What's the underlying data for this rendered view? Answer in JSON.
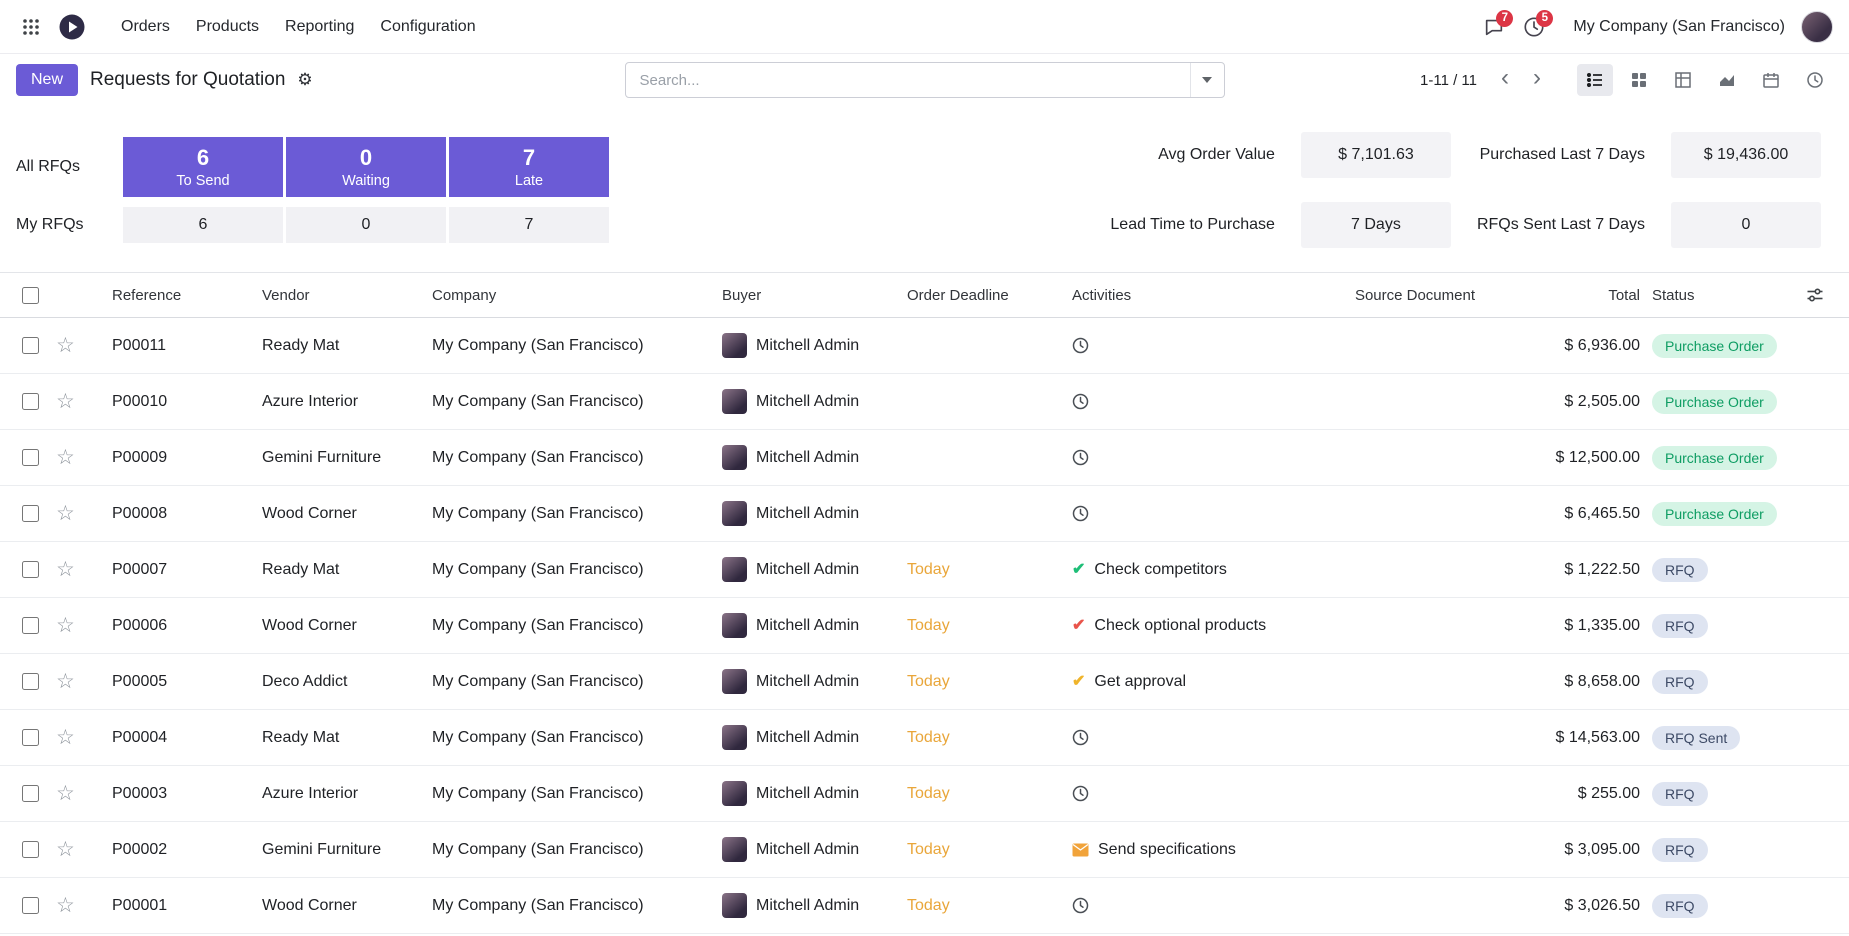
{
  "colors": {
    "accent": "#6B5BD6",
    "badge_red": "#DC3545",
    "today": "#E9A63A",
    "status_po_bg": "#D5F4E5",
    "status_po_text": "#0E9D63",
    "status_rfq_bg": "#DEE4F1",
    "status_rfq_text": "#3D4A66",
    "act_green": "#1EBE77",
    "act_red": "#E9544B",
    "act_yellow": "#EFB42B"
  },
  "navbar": {
    "menus": [
      {
        "label": "Orders"
      },
      {
        "label": "Products"
      },
      {
        "label": "Reporting"
      },
      {
        "label": "Configuration"
      }
    ],
    "company": "My Company (San Francisco)",
    "messages_badge": "7",
    "activities_badge": "5"
  },
  "control_panel": {
    "new_button": "New",
    "title": "Requests for Quotation",
    "search_placeholder": "Search...",
    "pager": "1-11 / 11",
    "view_switcher": [
      "list",
      "kanban",
      "pivot",
      "graph",
      "calendar",
      "activity"
    ],
    "active_view": "list"
  },
  "dashboard": {
    "left_rows": [
      {
        "label": "All RFQs",
        "style": "primary",
        "cells": [
          {
            "value": "6",
            "caption": "To Send"
          },
          {
            "value": "0",
            "caption": "Waiting"
          },
          {
            "value": "7",
            "caption": "Late"
          }
        ]
      },
      {
        "label": "My RFQs",
        "style": "muted",
        "cells": [
          {
            "value": "6",
            "caption": ""
          },
          {
            "value": "0",
            "caption": ""
          },
          {
            "value": "7",
            "caption": ""
          }
        ]
      }
    ],
    "stats": [
      {
        "label": "Avg Order Value",
        "value": "$ 7,101.63"
      },
      {
        "label": "Purchased Last 7 Days",
        "value": "$ 19,436.00"
      },
      {
        "label": "Lead Time to Purchase",
        "value": "7 Days"
      },
      {
        "label": "RFQs Sent Last 7 Days",
        "value": "0"
      }
    ]
  },
  "table": {
    "headers": [
      "Reference",
      "Vendor",
      "Company",
      "Buyer",
      "Order Deadline",
      "Activities",
      "Source Document",
      "Total",
      "Status"
    ],
    "rows": [
      {
        "reference": "P00011",
        "vendor": "Ready Mat",
        "company": "My Company (San Francisco)",
        "buyer": "Mitchell Admin",
        "deadline": "",
        "activity": {
          "icon": "clock",
          "color": "",
          "label": ""
        },
        "source": "",
        "total": "$ 6,936.00",
        "status": "Purchase Order",
        "status_type": "po"
      },
      {
        "reference": "P00010",
        "vendor": "Azure Interior",
        "company": "My Company (San Francisco)",
        "buyer": "Mitchell Admin",
        "deadline": "",
        "activity": {
          "icon": "clock",
          "color": "",
          "label": ""
        },
        "source": "",
        "total": "$ 2,505.00",
        "status": "Purchase Order",
        "status_type": "po"
      },
      {
        "reference": "P00009",
        "vendor": "Gemini Furniture",
        "company": "My Company (San Francisco)",
        "buyer": "Mitchell Admin",
        "deadline": "",
        "activity": {
          "icon": "clock",
          "color": "",
          "label": ""
        },
        "source": "",
        "total": "$ 12,500.00",
        "status": "Purchase Order",
        "status_type": "po"
      },
      {
        "reference": "P00008",
        "vendor": "Wood Corner",
        "company": "My Company (San Francisco)",
        "buyer": "Mitchell Admin",
        "deadline": "",
        "activity": {
          "icon": "clock",
          "color": "",
          "label": ""
        },
        "source": "",
        "total": "$ 6,465.50",
        "status": "Purchase Order",
        "status_type": "po"
      },
      {
        "reference": "P00007",
        "vendor": "Ready Mat",
        "company": "My Company (San Francisco)",
        "buyer": "Mitchell Admin",
        "deadline": "Today",
        "activity": {
          "icon": "check",
          "color": "green",
          "label": "Check competitors"
        },
        "source": "",
        "total": "$ 1,222.50",
        "status": "RFQ",
        "status_type": "rfq"
      },
      {
        "reference": "P00006",
        "vendor": "Wood Corner",
        "company": "My Company (San Francisco)",
        "buyer": "Mitchell Admin",
        "deadline": "Today",
        "activity": {
          "icon": "check",
          "color": "red",
          "label": "Check optional products"
        },
        "source": "",
        "total": "$ 1,335.00",
        "status": "RFQ",
        "status_type": "rfq"
      },
      {
        "reference": "P00005",
        "vendor": "Deco Addict",
        "company": "My Company (San Francisco)",
        "buyer": "Mitchell Admin",
        "deadline": "Today",
        "activity": {
          "icon": "check",
          "color": "yellow",
          "label": "Get approval"
        },
        "source": "",
        "total": "$ 8,658.00",
        "status": "RFQ",
        "status_type": "rfq"
      },
      {
        "reference": "P00004",
        "vendor": "Ready Mat",
        "company": "My Company (San Francisco)",
        "buyer": "Mitchell Admin",
        "deadline": "Today",
        "activity": {
          "icon": "clock",
          "color": "",
          "label": ""
        },
        "source": "",
        "total": "$ 14,563.00",
        "status": "RFQ Sent",
        "status_type": "rfq"
      },
      {
        "reference": "P00003",
        "vendor": "Azure Interior",
        "company": "My Company (San Francisco)",
        "buyer": "Mitchell Admin",
        "deadline": "Today",
        "activity": {
          "icon": "clock",
          "color": "",
          "label": ""
        },
        "source": "",
        "total": "$ 255.00",
        "status": "RFQ",
        "status_type": "rfq"
      },
      {
        "reference": "P00002",
        "vendor": "Gemini Furniture",
        "company": "My Company (San Francisco)",
        "buyer": "Mitchell Admin",
        "deadline": "Today",
        "activity": {
          "icon": "envelope",
          "color": "orange",
          "label": "Send specifications"
        },
        "source": "",
        "total": "$ 3,095.00",
        "status": "RFQ",
        "status_type": "rfq"
      },
      {
        "reference": "P00001",
        "vendor": "Wood Corner",
        "company": "My Company (San Francisco)",
        "buyer": "Mitchell Admin",
        "deadline": "Today",
        "activity": {
          "icon": "clock",
          "color": "",
          "label": ""
        },
        "source": "",
        "total": "$ 3,026.50",
        "status": "RFQ",
        "status_type": "rfq"
      }
    ]
  }
}
